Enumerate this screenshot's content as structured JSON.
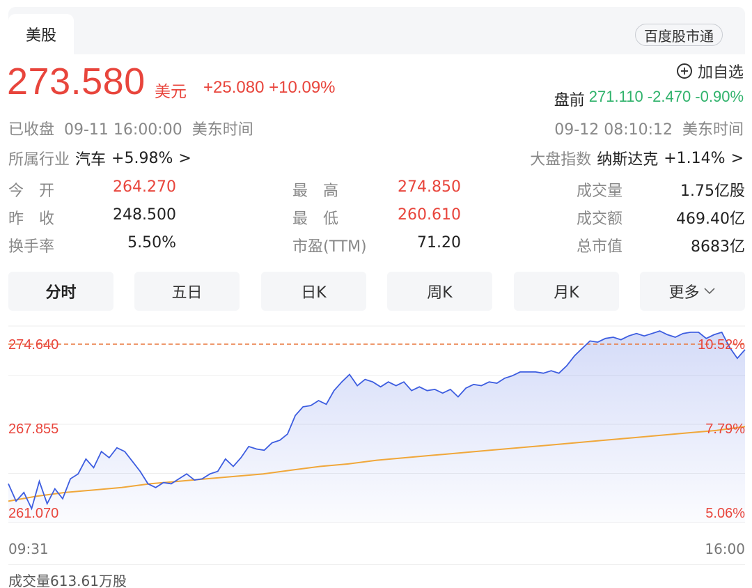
{
  "header": {
    "tab_label": "美股",
    "link_button": "百度股市通"
  },
  "quote": {
    "price": "273.580",
    "currency": "美元",
    "change": "+25.080 +10.09%",
    "add_watch": "加自选",
    "premarket_label": "盘前",
    "premarket_value": "271.110 -2.470 -0.90%",
    "status_left": "已收盘  09-11 16:00:00  美东时间",
    "status_right": "09-12 08:10:12  美东时间",
    "industry_label": "所属行业",
    "industry_name": "汽车",
    "industry_change": "+5.98%",
    "index_label": "大盘指数",
    "index_name": "纳斯达克",
    "index_change": "+1.14%",
    "chevron": ">"
  },
  "stats": {
    "open_label": "今　开",
    "open": "264.270",
    "high_label": "最　高",
    "high": "274.850",
    "volume_label": "成交量",
    "volume": "1.75亿股",
    "prev_close_label": "昨　收",
    "prev_close": "248.500",
    "low_label": "最　低",
    "low": "260.610",
    "turnover_label": "成交额",
    "turnover": "469.40亿",
    "turnover_rate_label": "换手率",
    "turnover_rate": "5.50%",
    "pe_label": "市盈(TTM)",
    "pe": "71.20",
    "market_cap_label": "总市值",
    "market_cap": "8683亿"
  },
  "period_tabs": [
    "分时",
    "五日",
    "日K",
    "周K",
    "月K",
    "更多"
  ],
  "colors": {
    "up": "#e8453c",
    "down": "#2fb26b",
    "price_line": "#3d5de0",
    "avg_line": "#f0a73a"
  },
  "chart_data": {
    "type": "line",
    "y_tick_labels_left": [
      "274.640",
      "267.855",
      "261.070"
    ],
    "y_tick_labels_right": [
      "10.52%",
      "7.79%",
      "5.06%"
    ],
    "y_range": [
      261.07,
      274.64
    ],
    "x_labels": [
      "09:31",
      "16:00"
    ],
    "reference_line": 274.64,
    "volume_label": "成交量613.61万股",
    "series": [
      {
        "values": [
          263.4,
          262.0,
          262.7,
          261.4,
          263.6,
          261.8,
          263.0,
          262.2,
          263.8,
          264.2,
          265.4,
          264.7,
          266.0,
          265.5,
          266.3,
          266.0,
          265.2,
          264.4,
          263.4,
          263.1,
          263.5,
          263.4,
          263.8,
          264.2,
          263.7,
          263.8,
          264.2,
          264.4,
          265.4,
          264.8,
          265.5,
          266.4,
          266.2,
          266.1,
          266.7,
          266.9,
          267.4,
          268.9,
          269.6,
          269.7,
          270.1,
          269.8,
          270.9,
          271.6,
          272.2,
          271.3,
          271.8,
          271.6,
          271.2,
          271.6,
          271.3,
          271.6,
          270.9,
          271.2,
          270.9,
          271.0,
          270.7,
          271.0,
          270.4,
          271.1,
          271.4,
          271.3,
          271.6,
          271.5,
          271.9,
          272.1,
          272.4,
          272.4,
          272.4,
          272.3,
          272.5,
          272.3,
          272.9,
          273.7,
          274.3,
          274.9,
          274.8,
          275.1,
          275.2,
          275.0,
          275.3,
          275.5,
          275.3,
          275.5,
          275.7,
          275.4,
          275.2,
          275.5,
          275.6,
          275.6,
          275.1,
          275.4,
          275.6,
          274.4,
          273.5,
          274.2
        ]
      },
      {
        "values": [
          262.0,
          262.4,
          262.7,
          262.9,
          263.1,
          263.4,
          263.6,
          263.8,
          264.0,
          264.2,
          264.5,
          264.8,
          265.0,
          265.3,
          265.5,
          265.7,
          265.9,
          266.1,
          266.3,
          266.5,
          266.7,
          266.9,
          267.1,
          267.3,
          267.5,
          267.7,
          268.0
        ]
      }
    ]
  }
}
